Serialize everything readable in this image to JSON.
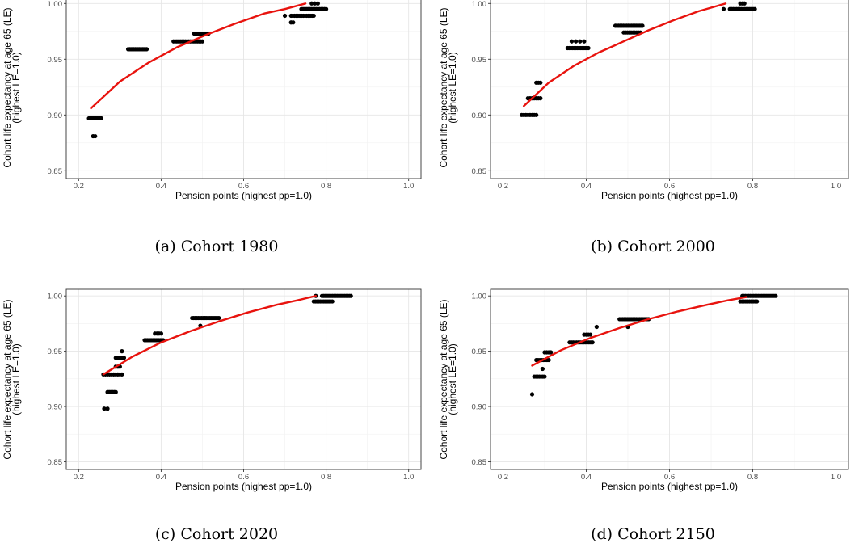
{
  "chart_data": [
    {
      "type": "scatter",
      "caption": "(a) Cohort 1980",
      "xlabel": "Pension points (highest pp=1.0)",
      "ylabel_lines": [
        "Cohort life expectancy at age 65 (LE)",
        "(highest LE=1.0)"
      ],
      "xlim": [
        0.17,
        1.03
      ],
      "ylim": [
        0.843,
        1.006
      ],
      "xticks": [
        0.2,
        0.4,
        0.6,
        0.8,
        1.0
      ],
      "xtick_labels": [
        "0.2",
        "0.4",
        "0.6",
        "0.8",
        "1.0"
      ],
      "yticks": [
        0.85,
        0.9,
        0.95,
        1.0
      ],
      "ytick_labels": [
        "0.85",
        "0.90",
        "0.95",
        "1.00"
      ],
      "grid": true,
      "series": [
        {
          "kind": "points",
          "color": "#000000",
          "clusters": [
            {
              "x0": 0.225,
              "x1": 0.255,
              "y": 0.897,
              "n": 10
            },
            {
              "x0": 0.235,
              "x1": 0.24,
              "y": 0.881,
              "n": 2
            },
            {
              "x0": 0.32,
              "x1": 0.365,
              "y": 0.959,
              "n": 14
            },
            {
              "x0": 0.43,
              "x1": 0.5,
              "y": 0.966,
              "n": 18
            },
            {
              "x0": 0.48,
              "x1": 0.515,
              "y": 0.973,
              "n": 10
            },
            {
              "x0": 0.7,
              "x1": 0.7,
              "y": 0.989,
              "n": 1
            },
            {
              "x0": 0.715,
              "x1": 0.72,
              "y": 0.983,
              "n": 2
            },
            {
              "x0": 0.715,
              "x1": 0.77,
              "y": 0.989,
              "n": 14
            },
            {
              "x0": 0.74,
              "x1": 0.8,
              "y": 0.995,
              "n": 16
            },
            {
              "x0": 0.765,
              "x1": 0.78,
              "y": 1.0,
              "n": 3
            }
          ]
        },
        {
          "kind": "fit",
          "color": "#e8130e",
          "x": [
            0.23,
            0.3,
            0.37,
            0.44,
            0.51,
            0.58,
            0.65,
            0.7,
            0.75
          ],
          "y": [
            0.906,
            0.93,
            0.947,
            0.961,
            0.972,
            0.982,
            0.991,
            0.995,
            1.0
          ]
        }
      ]
    },
    {
      "type": "scatter",
      "caption": "(b) Cohort 2000",
      "xlabel": "Pension points (highest pp=1.0)",
      "ylabel_lines": [
        "Cohort life expectancy at age 65 (LE)",
        "(highest LE=1.0)"
      ],
      "xlim": [
        0.17,
        1.03
      ],
      "ylim": [
        0.843,
        1.006
      ],
      "xticks": [
        0.2,
        0.4,
        0.6,
        0.8,
        1.0
      ],
      "xtick_labels": [
        "0.2",
        "0.4",
        "0.6",
        "0.8",
        "1.0"
      ],
      "yticks": [
        0.85,
        0.9,
        0.95,
        1.0
      ],
      "ytick_labels": [
        "0.85",
        "0.90",
        "0.95",
        "1.00"
      ],
      "grid": true,
      "series": [
        {
          "kind": "points",
          "color": "#000000",
          "clusters": [
            {
              "x0": 0.245,
              "x1": 0.28,
              "y": 0.9,
              "n": 8
            },
            {
              "x0": 0.26,
              "x1": 0.29,
              "y": 0.915,
              "n": 7
            },
            {
              "x0": 0.28,
              "x1": 0.29,
              "y": 0.929,
              "n": 3
            },
            {
              "x0": 0.355,
              "x1": 0.405,
              "y": 0.96,
              "n": 14
            },
            {
              "x0": 0.365,
              "x1": 0.375,
              "y": 0.966,
              "n": 2
            },
            {
              "x0": 0.385,
              "x1": 0.395,
              "y": 0.966,
              "n": 2
            },
            {
              "x0": 0.47,
              "x1": 0.535,
              "y": 0.98,
              "n": 18
            },
            {
              "x0": 0.49,
              "x1": 0.53,
              "y": 0.974,
              "n": 10
            },
            {
              "x0": 0.73,
              "x1": 0.73,
              "y": 0.995,
              "n": 1
            },
            {
              "x0": 0.745,
              "x1": 0.805,
              "y": 0.995,
              "n": 16
            },
            {
              "x0": 0.77,
              "x1": 0.78,
              "y": 1.0,
              "n": 3
            }
          ]
        },
        {
          "kind": "fit",
          "color": "#e8130e",
          "x": [
            0.25,
            0.31,
            0.37,
            0.43,
            0.49,
            0.55,
            0.61,
            0.67,
            0.735
          ],
          "y": [
            0.908,
            0.929,
            0.944,
            0.956,
            0.966,
            0.976,
            0.985,
            0.993,
            1.0
          ]
        }
      ]
    },
    {
      "type": "scatter",
      "caption": "(c) Cohort 2020",
      "xlabel": "Pension points (highest pp=1.0)",
      "ylabel_lines": [
        "Cohort life expectancy at age 65 (LE)",
        "(highest LE=1.0)"
      ],
      "xlim": [
        0.17,
        1.03
      ],
      "ylim": [
        0.843,
        1.006
      ],
      "xticks": [
        0.2,
        0.4,
        0.6,
        0.8,
        1.0
      ],
      "xtick_labels": [
        "0.2",
        "0.4",
        "0.6",
        "0.8",
        "1.0"
      ],
      "yticks": [
        0.85,
        0.9,
        0.95,
        1.0
      ],
      "ytick_labels": [
        "0.85",
        "0.90",
        "0.95",
        "1.00"
      ],
      "grid": true,
      "series": [
        {
          "kind": "points",
          "color": "#000000",
          "clusters": [
            {
              "x0": 0.262,
              "x1": 0.27,
              "y": 0.898,
              "n": 2
            },
            {
              "x0": 0.27,
              "x1": 0.29,
              "y": 0.913,
              "n": 6
            },
            {
              "x0": 0.26,
              "x1": 0.305,
              "y": 0.929,
              "n": 10
            },
            {
              "x0": 0.29,
              "x1": 0.3,
              "y": 0.936,
              "n": 3
            },
            {
              "x0": 0.29,
              "x1": 0.31,
              "y": 0.944,
              "n": 6
            },
            {
              "x0": 0.305,
              "x1": 0.305,
              "y": 0.95,
              "n": 1
            },
            {
              "x0": 0.36,
              "x1": 0.405,
              "y": 0.96,
              "n": 14
            },
            {
              "x0": 0.385,
              "x1": 0.4,
              "y": 0.966,
              "n": 4
            },
            {
              "x0": 0.475,
              "x1": 0.54,
              "y": 0.98,
              "n": 18
            },
            {
              "x0": 0.495,
              "x1": 0.495,
              "y": 0.973,
              "n": 1
            },
            {
              "x0": 0.77,
              "x1": 0.815,
              "y": 0.995,
              "n": 12
            },
            {
              "x0": 0.775,
              "x1": 0.775,
              "y": 1.0,
              "n": 1
            },
            {
              "x0": 0.79,
              "x1": 0.86,
              "y": 1.0,
              "n": 20
            }
          ]
        },
        {
          "kind": "fit",
          "color": "#e8130e",
          "x": [
            0.26,
            0.33,
            0.4,
            0.47,
            0.54,
            0.61,
            0.68,
            0.73,
            0.775
          ],
          "y": [
            0.929,
            0.945,
            0.958,
            0.968,
            0.977,
            0.985,
            0.992,
            0.996,
            1.0
          ]
        }
      ]
    },
    {
      "type": "scatter",
      "caption": "(d) Cohort 2150",
      "xlabel": "Pension points (highest pp=1.0)",
      "ylabel_lines": [
        "Cohort life expectancy at age 65 (LE)",
        "(highest LE=1.0)"
      ],
      "xlim": [
        0.17,
        1.03
      ],
      "ylim": [
        0.843,
        1.006
      ],
      "xticks": [
        0.2,
        0.4,
        0.6,
        0.8,
        1.0
      ],
      "xtick_labels": [
        "0.2",
        "0.4",
        "0.6",
        "0.8",
        "1.0"
      ],
      "yticks": [
        0.85,
        0.9,
        0.95,
        1.0
      ],
      "ytick_labels": [
        "0.85",
        "0.90",
        "0.95",
        "1.00"
      ],
      "grid": true,
      "series": [
        {
          "kind": "points",
          "color": "#000000",
          "clusters": [
            {
              "x0": 0.27,
              "x1": 0.27,
              "y": 0.911,
              "n": 1
            },
            {
              "x0": 0.275,
              "x1": 0.3,
              "y": 0.927,
              "n": 7
            },
            {
              "x0": 0.295,
              "x1": 0.295,
              "y": 0.934,
              "n": 1
            },
            {
              "x0": 0.28,
              "x1": 0.31,
              "y": 0.942,
              "n": 8
            },
            {
              "x0": 0.3,
              "x1": 0.315,
              "y": 0.949,
              "n": 4
            },
            {
              "x0": 0.36,
              "x1": 0.415,
              "y": 0.958,
              "n": 14
            },
            {
              "x0": 0.395,
              "x1": 0.41,
              "y": 0.965,
              "n": 4
            },
            {
              "x0": 0.425,
              "x1": 0.425,
              "y": 0.972,
              "n": 1
            },
            {
              "x0": 0.48,
              "x1": 0.55,
              "y": 0.979,
              "n": 20
            },
            {
              "x0": 0.5,
              "x1": 0.5,
              "y": 0.972,
              "n": 1
            },
            {
              "x0": 0.77,
              "x1": 0.81,
              "y": 0.995,
              "n": 10
            },
            {
              "x0": 0.775,
              "x1": 0.855,
              "y": 1.0,
              "n": 22
            }
          ]
        },
        {
          "kind": "fit",
          "color": "#e8130e",
          "x": [
            0.27,
            0.34,
            0.41,
            0.48,
            0.55,
            0.62,
            0.69,
            0.74,
            0.785
          ],
          "y": [
            0.937,
            0.951,
            0.962,
            0.971,
            0.979,
            0.986,
            0.992,
            0.996,
            0.999
          ]
        }
      ]
    }
  ]
}
